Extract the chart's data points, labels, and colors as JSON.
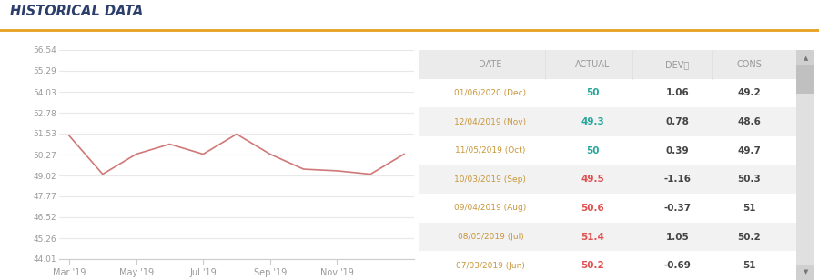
{
  "title": "HISTORICAL DATA",
  "title_color": "#2c3e6b",
  "title_fontsize": 10.5,
  "orange_line_color": "#E8A020",
  "background_color": "#ffffff",
  "chart_bg_color": "#ffffff",
  "line_color": "#d07878",
  "grid_color": "#e8e8e8",
  "x_values": [
    0,
    1,
    2,
    3,
    4,
    5,
    6,
    7,
    8,
    9,
    10
  ],
  "y_values": [
    51.4,
    49.1,
    50.3,
    50.9,
    50.3,
    51.5,
    50.3,
    49.4,
    49.3,
    49.1,
    50.3
  ],
  "x_tick_positions": [
    0,
    2,
    4,
    6,
    8
  ],
  "x_tick_labels": [
    "Mar '19",
    "May '19",
    "Jul '19",
    "Sep '19",
    "Nov '19"
  ],
  "y_ticks": [
    44.01,
    45.26,
    46.52,
    47.77,
    49.02,
    50.27,
    51.53,
    52.78,
    54.03,
    55.29,
    56.54
  ],
  "y_min": 44.01,
  "y_max": 56.54,
  "table_header_bg": "#ebebeb",
  "table_row_bg1": "#ffffff",
  "table_row_bg2": "#f2f2f2",
  "table_header_color": "#999999",
  "table_date_color": "#c8973a",
  "table_actual_green": "#26a69a",
  "table_actual_red": "#e05050",
  "table_dev_color": "#444444",
  "table_cons_color": "#444444",
  "table_headers": [
    "DATE",
    "ACTUAL",
    "DEVⓘ",
    "CONS"
  ],
  "table_rows": [
    [
      "01/06/2020 (Dec)",
      "50",
      "1.06",
      "49.2",
      "green"
    ],
    [
      "12/04/2019 (Nov)",
      "49.3",
      "0.78",
      "48.6",
      "green"
    ],
    [
      "11/05/2019 (Oct)",
      "50",
      "0.39",
      "49.7",
      "green"
    ],
    [
      "10/03/2019 (Sep)",
      "49.5",
      "-1.16",
      "50.3",
      "red"
    ],
    [
      "09/04/2019 (Aug)",
      "50.6",
      "-0.37",
      "51",
      "red"
    ],
    [
      "08/05/2019 (Jul)",
      "51.4",
      "1.05",
      "50.2",
      "red"
    ],
    [
      "07/03/2019 (Jun)",
      "50.2",
      "-0.69",
      "51",
      "red"
    ]
  ],
  "scrollbar_bg": "#e0e0e0",
  "scrollbar_thumb": "#c0c0c0",
  "scrollbar_arrow_bg": "#d0d0d0"
}
